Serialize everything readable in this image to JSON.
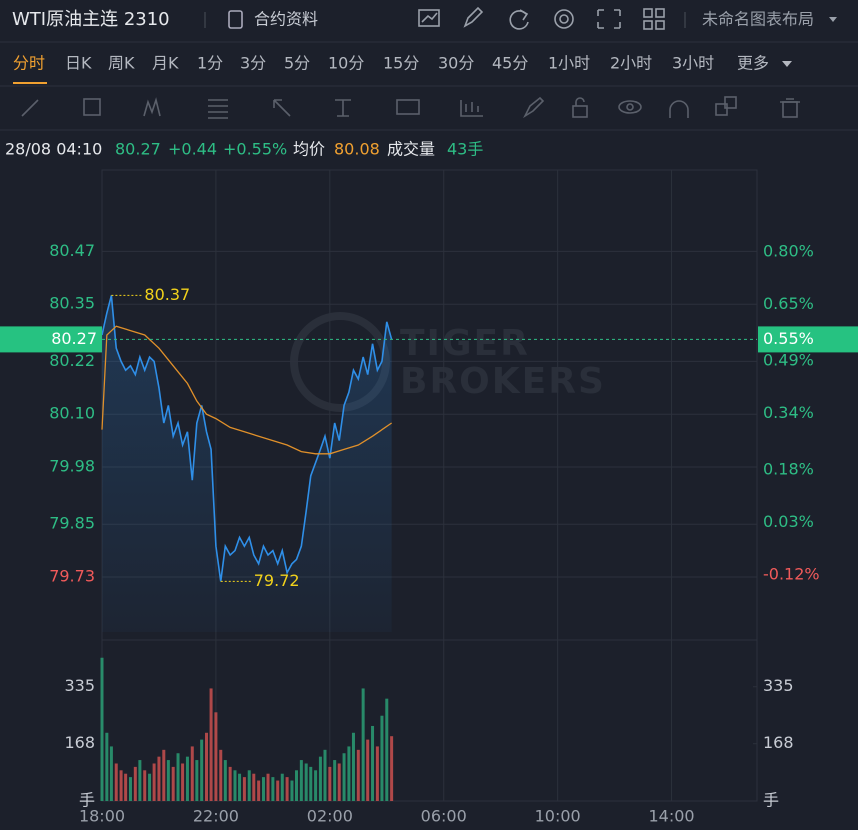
{
  "header": {
    "symbol": "WTI原油主连 2310",
    "contract_info": "合约资料",
    "layout_name": "未命名图表布局"
  },
  "timeframes": [
    "分时",
    "日K",
    "周K",
    "月K",
    "1分",
    "3分",
    "5分",
    "10分",
    "15分",
    "30分",
    "45分",
    "1小时",
    "2小时",
    "3小时",
    "更多"
  ],
  "info": {
    "time": "28/08 04:10",
    "price": "80.27",
    "change": "+0.44",
    "change_pct": "+0.55%",
    "avg_value": "80.08",
    "volume_label": "成交量",
    "volume_value": "43手"
  },
  "watermark": [
    "TIGER",
    "BROKERS"
  ],
  "chart_data": [
    {
      "type": "line",
      "xlim": [
        0,
        23
      ],
      "ylim": [
        79.605,
        80.655
      ],
      "y2lim": [
        -0.2818,
        1.0334
      ],
      "yticks": [
        80.47,
        80.35,
        80.22,
        {
          "value": 80.1,
          "label": "80.10"
        },
        79.98,
        79.85,
        79.73
      ],
      "y2ticks": [
        {
          "value": 0.8,
          "label": "0.80%"
        },
        {
          "value": 0.65,
          "label": "0.65%"
        },
        {
          "value": 0.49,
          "label": "0.49%"
        },
        {
          "value": 0.34,
          "label": "0.34%"
        },
        {
          "value": 0.18,
          "label": "0.18%"
        },
        {
          "value": 0.03,
          "label": "0.03%"
        },
        {
          "value": -0.12,
          "label": "-0.12%"
        }
      ],
      "grid": true,
      "series": [
        {
          "color": "#2f8fe8",
          "x": [
            0,
            0.17,
            0.33,
            0.5,
            0.67,
            0.83,
            1,
            1.17,
            1.33,
            1.5,
            1.67,
            1.83,
            2,
            2.17,
            2.33,
            2.5,
            2.67,
            2.83,
            3,
            3.17,
            3.33,
            3.5,
            3.67,
            3.83,
            4,
            4.17,
            4.33,
            4.5,
            4.67,
            4.83,
            5,
            5.17,
            5.33,
            5.5,
            5.67,
            5.83,
            6,
            6.17,
            6.33,
            6.5,
            6.67,
            6.83,
            7,
            7.17,
            7.33,
            7.5,
            7.67,
            7.83,
            8,
            8.17,
            8.33,
            8.5,
            8.67,
            8.83,
            9,
            9.17,
            9.33,
            9.5,
            9.67,
            9.83,
            10,
            10.17
          ],
          "values": [
            80.28,
            80.33,
            80.37,
            80.25,
            80.22,
            80.2,
            80.21,
            80.19,
            80.23,
            80.2,
            80.23,
            80.22,
            80.16,
            80.08,
            80.12,
            80.05,
            80.08,
            80.03,
            80.06,
            79.95,
            80.08,
            80.12,
            80.06,
            80.02,
            79.8,
            79.72,
            79.8,
            79.78,
            79.79,
            79.82,
            79.8,
            79.82,
            79.78,
            79.76,
            79.8,
            79.78,
            79.79,
            79.76,
            79.79,
            79.74,
            79.76,
            79.77,
            79.8,
            79.88,
            79.96,
            79.99,
            80.02,
            80.05,
            80.0,
            80.08,
            80.04,
            80.12,
            80.15,
            80.2,
            80.18,
            80.23,
            80.19,
            80.26,
            80.2,
            80.22,
            80.31,
            80.27
          ]
        },
        {
          "name": "均价",
          "color": "#e0902a",
          "x": [
            0,
            0.17,
            0.5,
            1,
            1.5,
            2,
            2.5,
            3,
            3.33,
            3.67,
            4,
            4.5,
            5,
            5.5,
            6,
            6.5,
            7,
            7.5,
            8,
            8.5,
            9,
            9.5,
            10.17
          ],
          "values": [
            80.065,
            80.28,
            80.3,
            80.29,
            80.28,
            80.25,
            80.21,
            80.17,
            80.13,
            80.1,
            80.09,
            80.07,
            80.06,
            80.05,
            80.04,
            80.03,
            80.015,
            80.01,
            80.01,
            80.02,
            80.03,
            80.05,
            80.08
          ]
        }
      ],
      "current": {
        "value": 80.27,
        "y2": {
          "value": 0.55,
          "label": "0.55%"
        }
      },
      "annotations": [
        {
          "x": 0.33,
          "value": 80.37
        },
        {
          "x": 4.17,
          "value": 79.72
        }
      ]
    },
    {
      "type": "bar",
      "xlim": [
        0,
        23
      ],
      "ylim": [
        0,
        472
      ],
      "xticks": [
        {
          "value": 0,
          "label": "18:00"
        },
        {
          "value": 4,
          "label": "22:00"
        },
        {
          "value": 8,
          "label": "02:00"
        },
        {
          "value": 12,
          "label": "06:00"
        },
        {
          "value": 16,
          "label": "10:00"
        },
        {
          "value": 20,
          "label": "14:00"
        }
      ],
      "yticks": [
        {
          "value": 0,
          "label": "手"
        },
        168,
        335
      ],
      "up_color": "#2a9d74",
      "down_color": "#c9504f",
      "values": [
        420,
        200,
        160,
        110,
        90,
        80,
        70,
        100,
        120,
        90,
        80,
        110,
        130,
        150,
        120,
        100,
        140,
        110,
        130,
        160,
        120,
        180,
        200,
        330,
        260,
        150,
        120,
        100,
        90,
        80,
        70,
        90,
        80,
        60,
        70,
        80,
        70,
        60,
        80,
        70,
        60,
        90,
        120,
        110,
        100,
        90,
        130,
        150,
        100,
        120,
        110,
        140,
        160,
        200,
        150,
        330,
        180,
        220,
        160,
        250,
        300,
        190
      ]
    }
  ]
}
